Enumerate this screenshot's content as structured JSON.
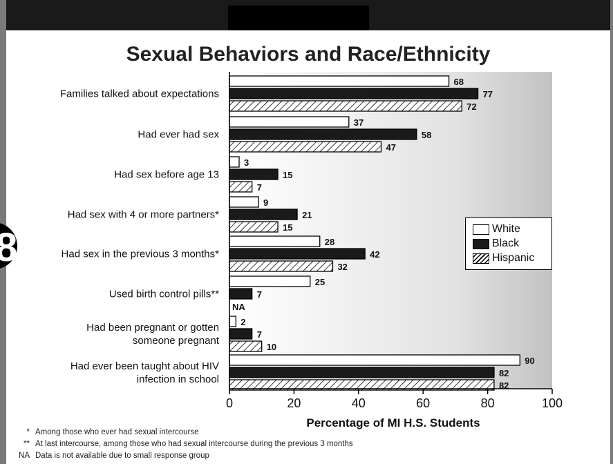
{
  "title": "Sexual Behaviors and Race/Ethnicity",
  "chart_data": {
    "type": "bar",
    "orientation": "horizontal",
    "title": "Sexual Behaviors and Race/Ethnicity",
    "xlabel": "Percentage of MI H.S. Students",
    "xlim": [
      0,
      100
    ],
    "xticks": [
      0,
      20,
      40,
      60,
      80,
      100
    ],
    "categories": [
      "Families talked about expectations",
      "Had ever had sex",
      "Had sex before age 13",
      "Had sex with 4 or more partners*",
      "Had sex in the previous 3 months*",
      "Used birth control pills**",
      "Had been pregnant or gotten someone pregnant",
      "Had ever been taught about HIV infection in school"
    ],
    "category_lines": [
      [
        "Families talked about expectations"
      ],
      [
        "Had ever had sex"
      ],
      [
        "Had sex before age 13"
      ],
      [
        "Had sex with 4 or more partners*"
      ],
      [
        "Had sex in the previous 3 months*"
      ],
      [
        "Used birth control pills**"
      ],
      [
        "Had been pregnant or gotten",
        "someone pregnant"
      ],
      [
        "Had ever been taught about HIV",
        "infection in school"
      ]
    ],
    "series": [
      {
        "name": "White",
        "values": [
          68,
          37,
          3,
          9,
          28,
          25,
          2,
          90
        ],
        "color": "#ffffff",
        "pattern": "none"
      },
      {
        "name": "Black",
        "values": [
          77,
          58,
          15,
          21,
          42,
          7,
          7,
          82
        ],
        "color": "#1a1a1a",
        "pattern": "solid"
      },
      {
        "name": "Hispanic",
        "values": [
          72,
          47,
          7,
          15,
          32,
          null,
          10,
          82
        ],
        "color": "#ffffff",
        "pattern": "hatch",
        "missing_label": "NA"
      }
    ],
    "legend_position": "right",
    "grid": false
  },
  "legend": {
    "white": "White",
    "black": "Black",
    "hispanic": "Hispanic"
  },
  "footnotes": [
    {
      "symbol": "*",
      "text": "Among those who ever had sexual intercourse"
    },
    {
      "symbol": "**",
      "text": "At last intercourse, among those who had sexual intercourse during the previous 3 months"
    },
    {
      "symbol": "NA",
      "text": "Data is not available due to small response group"
    }
  ],
  "side_mark": "8"
}
